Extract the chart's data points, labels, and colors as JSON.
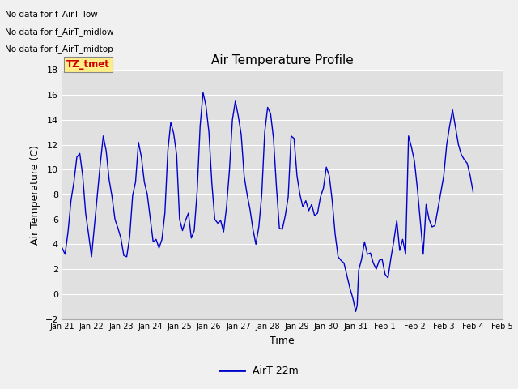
{
  "title": "Air Temperature Profile",
  "ylabel": "Air Temperature (C)",
  "xlabel": "Time",
  "ylim": [
    -2,
    18
  ],
  "yticks": [
    -2,
    0,
    2,
    4,
    6,
    8,
    10,
    12,
    14,
    16,
    18
  ],
  "line_color": "#0000cc",
  "background_color": "#e0e0e0",
  "fig_background_color": "#f0f0f0",
  "legend_label": "AirT 22m",
  "no_data_texts": [
    "No data for f_AirT_low",
    "No data for f_AirT_midlow",
    "No data for f_AirT_midtop"
  ],
  "tz_label": "TZ_tmet",
  "tz_label_color": "#cc0000",
  "tz_box_color": "#ffee88",
  "x_tick_labels": [
    "Jan 21",
    "Jan 22",
    "Jan 23",
    "Jan 24",
    "Jan 25",
    "Jan 26",
    "Jan 27",
    "Jan 28",
    "Jan 29",
    "Jan 30",
    "Jan 31",
    "Feb 1",
    "Feb 2",
    "Feb 3",
    "Feb 4",
    "Feb 5"
  ],
  "temperature_data": [
    [
      21.0,
      3.7
    ],
    [
      21.1,
      3.2
    ],
    [
      21.2,
      5.0
    ],
    [
      21.3,
      7.5
    ],
    [
      21.4,
      9.0
    ],
    [
      21.5,
      11.0
    ],
    [
      21.6,
      11.3
    ],
    [
      21.7,
      9.5
    ],
    [
      21.8,
      6.5
    ],
    [
      21.9,
      4.8
    ],
    [
      22.0,
      3.0
    ],
    [
      22.1,
      5.5
    ],
    [
      22.2,
      8.0
    ],
    [
      22.3,
      10.5
    ],
    [
      22.4,
      12.7
    ],
    [
      22.5,
      11.5
    ],
    [
      22.6,
      9.2
    ],
    [
      22.7,
      7.8
    ],
    [
      22.8,
      6.0
    ],
    [
      22.9,
      5.3
    ],
    [
      23.0,
      4.5
    ],
    [
      23.1,
      3.1
    ],
    [
      23.2,
      3.0
    ],
    [
      23.3,
      4.6
    ],
    [
      23.4,
      7.9
    ],
    [
      23.5,
      9.0
    ],
    [
      23.6,
      12.2
    ],
    [
      23.7,
      11.0
    ],
    [
      23.8,
      9.0
    ],
    [
      23.9,
      8.0
    ],
    [
      24.0,
      6.1
    ],
    [
      24.1,
      4.2
    ],
    [
      24.2,
      4.4
    ],
    [
      24.3,
      3.7
    ],
    [
      24.4,
      4.4
    ],
    [
      24.5,
      6.5
    ],
    [
      24.6,
      11.5
    ],
    [
      24.7,
      13.8
    ],
    [
      24.8,
      12.9
    ],
    [
      24.9,
      11.2
    ],
    [
      25.0,
      6.0
    ],
    [
      25.1,
      5.1
    ],
    [
      25.2,
      5.9
    ],
    [
      25.3,
      6.5
    ],
    [
      25.4,
      4.5
    ],
    [
      25.5,
      5.1
    ],
    [
      25.6,
      8.3
    ],
    [
      25.7,
      13.5
    ],
    [
      25.8,
      16.2
    ],
    [
      25.9,
      15.1
    ],
    [
      26.0,
      13.0
    ],
    [
      26.1,
      8.9
    ],
    [
      26.2,
      6.0
    ],
    [
      26.3,
      5.7
    ],
    [
      26.4,
      5.9
    ],
    [
      26.5,
      5.0
    ],
    [
      26.6,
      7.0
    ],
    [
      26.7,
      10.0
    ],
    [
      26.8,
      14.0
    ],
    [
      26.9,
      15.5
    ],
    [
      27.0,
      14.3
    ],
    [
      27.1,
      12.8
    ],
    [
      27.2,
      9.5
    ],
    [
      27.3,
      8.0
    ],
    [
      27.4,
      6.8
    ],
    [
      27.5,
      5.2
    ],
    [
      27.6,
      4.0
    ],
    [
      27.7,
      5.4
    ],
    [
      27.8,
      8.0
    ],
    [
      27.9,
      13.0
    ],
    [
      28.0,
      15.0
    ],
    [
      28.1,
      14.5
    ],
    [
      28.2,
      12.5
    ],
    [
      28.3,
      8.6
    ],
    [
      28.4,
      5.3
    ],
    [
      28.5,
      5.2
    ],
    [
      28.6,
      6.3
    ],
    [
      28.7,
      7.8
    ],
    [
      28.8,
      12.7
    ],
    [
      28.9,
      12.5
    ],
    [
      29.0,
      9.5
    ],
    [
      29.1,
      8.0
    ],
    [
      29.2,
      7.0
    ],
    [
      29.3,
      7.5
    ],
    [
      29.4,
      6.7
    ],
    [
      29.5,
      7.2
    ],
    [
      29.6,
      6.3
    ],
    [
      29.7,
      6.5
    ],
    [
      29.8,
      7.8
    ],
    [
      29.9,
      8.5
    ],
    [
      30.0,
      10.2
    ],
    [
      30.1,
      9.5
    ],
    [
      30.2,
      7.5
    ],
    [
      30.3,
      4.8
    ],
    [
      30.4,
      3.0
    ],
    [
      30.5,
      2.7
    ],
    [
      30.6,
      2.5
    ],
    [
      30.7,
      1.5
    ],
    [
      30.8,
      0.5
    ],
    [
      30.9,
      -0.3
    ],
    [
      31.0,
      -1.4
    ],
    [
      31.05,
      -0.9
    ],
    [
      31.1,
      1.9
    ],
    [
      31.2,
      2.8
    ],
    [
      31.3,
      4.2
    ],
    [
      31.4,
      3.2
    ],
    [
      31.5,
      3.3
    ],
    [
      31.6,
      2.5
    ],
    [
      31.7,
      2.0
    ],
    [
      31.8,
      2.7
    ],
    [
      31.9,
      2.8
    ],
    [
      32.0,
      1.6
    ],
    [
      32.1,
      1.3
    ],
    [
      32.2,
      2.9
    ],
    [
      32.3,
      4.3
    ],
    [
      32.4,
      5.9
    ],
    [
      32.5,
      3.5
    ],
    [
      32.6,
      4.4
    ],
    [
      32.7,
      3.2
    ],
    [
      32.8,
      12.7
    ],
    [
      32.9,
      11.8
    ],
    [
      33.0,
      10.7
    ],
    [
      33.1,
      8.5
    ],
    [
      33.2,
      5.9
    ],
    [
      33.3,
      3.2
    ],
    [
      33.4,
      7.2
    ],
    [
      33.5,
      6.0
    ],
    [
      33.6,
      5.4
    ],
    [
      33.7,
      5.5
    ],
    [
      34.0,
      9.5
    ],
    [
      34.1,
      12.0
    ],
    [
      34.2,
      13.5
    ],
    [
      34.3,
      14.8
    ],
    [
      34.4,
      13.4
    ],
    [
      34.5,
      12.0
    ],
    [
      34.6,
      11.2
    ],
    [
      34.7,
      10.8
    ],
    [
      34.8,
      10.5
    ],
    [
      34.9,
      9.5
    ],
    [
      35.0,
      8.2
    ]
  ]
}
